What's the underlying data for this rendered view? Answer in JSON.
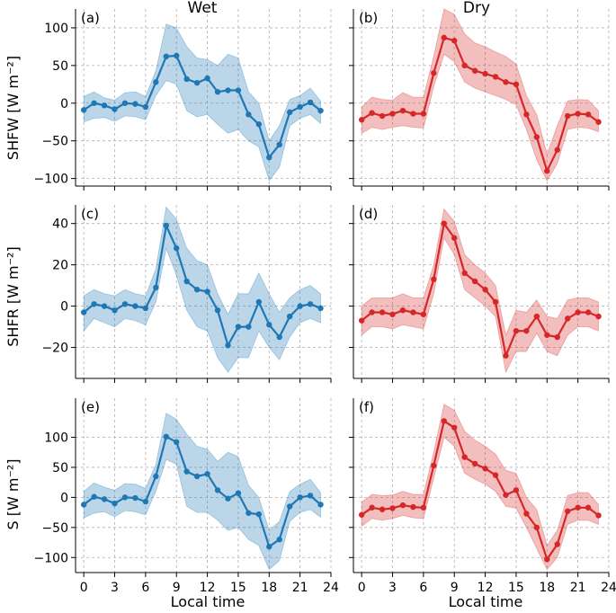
{
  "figure": {
    "col_titles": [
      "Wet",
      "Dry"
    ],
    "xlabel": "Local time",
    "ylabels": [
      "SHFW [W m⁻²]",
      "SHFR [W m⁻²]",
      "S [W m⁻²]"
    ]
  },
  "colors": {
    "wet": "#1f77b4",
    "dry": "#d62728",
    "grid": "#b0b0b0"
  },
  "chart_data": [
    {
      "type": "line",
      "panel": "(a)",
      "row": 0,
      "col": 0,
      "x": [
        0,
        1,
        2,
        3,
        4,
        5,
        6,
        7,
        8,
        9,
        10,
        11,
        12,
        13,
        14,
        15,
        16,
        17,
        18,
        19,
        20,
        21,
        22,
        23
      ],
      "y": [
        -9,
        0,
        -3,
        -8,
        0,
        -1,
        -5,
        28,
        62,
        63,
        32,
        27,
        33,
        15,
        17,
        17,
        -15,
        -28,
        -72,
        -55,
        -12,
        -5,
        1,
        -10
      ],
      "lower": [
        -25,
        -20,
        -19,
        -24,
        -17,
        -18,
        -22,
        10,
        30,
        25,
        -10,
        -18,
        -15,
        -28,
        -40,
        -35,
        -50,
        -58,
        -103,
        -85,
        -30,
        -20,
        -15,
        -27
      ],
      "upper": [
        9,
        15,
        7,
        4,
        14,
        15,
        9,
        43,
        105,
        100,
        75,
        60,
        58,
        50,
        65,
        60,
        15,
        0,
        -50,
        -30,
        5,
        10,
        20,
        3
      ],
      "xlim": [
        -0.8,
        24
      ],
      "ylim": [
        -110,
        125
      ],
      "xticks": [
        0,
        3,
        6,
        9,
        12,
        15,
        18,
        21,
        24
      ],
      "yticks": [
        -100,
        -50,
        0,
        50,
        100
      ]
    },
    {
      "type": "line",
      "panel": "(b)",
      "row": 0,
      "col": 1,
      "x": [
        0,
        1,
        2,
        3,
        4,
        5,
        6,
        7,
        8,
        9,
        10,
        11,
        12,
        13,
        14,
        15,
        16,
        17,
        18,
        19,
        20,
        21,
        22,
        23
      ],
      "y": [
        -22,
        -13,
        -17,
        -14,
        -10,
        -14,
        -14,
        40,
        87,
        83,
        50,
        43,
        39,
        35,
        28,
        25,
        -15,
        -45,
        -90,
        -62,
        -17,
        -14,
        -15,
        -25
      ],
      "lower": [
        -40,
        -32,
        -35,
        -32,
        -30,
        -32,
        -33,
        22,
        65,
        55,
        28,
        20,
        15,
        10,
        5,
        -2,
        -35,
        -75,
        -103,
        -80,
        -35,
        -32,
        -33,
        -38
      ],
      "upper": [
        -5,
        8,
        5,
        4,
        14,
        8,
        8,
        62,
        125,
        118,
        92,
        80,
        75,
        68,
        62,
        52,
        10,
        -15,
        -68,
        -30,
        3,
        5,
        4,
        -10
      ],
      "xlim": [
        -0.8,
        24
      ],
      "ylim": [
        -110,
        125
      ],
      "xticks": [
        0,
        3,
        6,
        9,
        12,
        15,
        18,
        21,
        24
      ],
      "yticks": [
        -100,
        -50,
        0,
        50,
        100
      ]
    },
    {
      "type": "line",
      "panel": "(c)",
      "row": 1,
      "col": 0,
      "x": [
        0,
        1,
        2,
        3,
        4,
        5,
        6,
        7,
        8,
        9,
        10,
        11,
        12,
        13,
        14,
        15,
        16,
        17,
        18,
        19,
        20,
        21,
        22,
        23
      ],
      "y": [
        -3,
        1,
        0,
        -2,
        1,
        0,
        -1,
        9,
        39,
        28,
        12,
        8,
        7,
        -2,
        -19,
        -10,
        -10,
        2,
        -9,
        -15,
        -5,
        0,
        1,
        -1
      ],
      "lower": [
        -12,
        -6,
        -8,
        -10,
        -6,
        -7,
        -9,
        2,
        28,
        15,
        -2,
        -10,
        -12,
        -25,
        -32,
        -25,
        -25,
        -12,
        -20,
        -26,
        -15,
        -8,
        -6,
        -8
      ],
      "upper": [
        5,
        8,
        6,
        5,
        8,
        6,
        5,
        18,
        48,
        42,
        28,
        22,
        20,
        6,
        -4,
        6,
        6,
        16,
        6,
        -3,
        4,
        8,
        10,
        6
      ],
      "xlim": [
        -0.8,
        24
      ],
      "ylim": [
        -35,
        49
      ],
      "xticks": [
        0,
        3,
        6,
        9,
        12,
        15,
        18,
        21,
        24
      ],
      "yticks": [
        -20,
        0,
        20,
        40
      ]
    },
    {
      "type": "line",
      "panel": "(d)",
      "row": 1,
      "col": 1,
      "x": [
        0,
        1,
        2,
        3,
        4,
        5,
        6,
        7,
        8,
        9,
        10,
        11,
        12,
        13,
        14,
        15,
        16,
        17,
        18,
        19,
        20,
        21,
        22,
        23
      ],
      "y": [
        -7,
        -3,
        -3,
        -4,
        -2,
        -3,
        -4,
        13,
        40,
        33,
        16,
        12,
        8,
        2,
        -24,
        -12,
        -12,
        -5,
        -14,
        -15,
        -6,
        -3,
        -3,
        -5
      ],
      "lower": [
        -14,
        -10,
        -10,
        -11,
        -9,
        -10,
        -11,
        6,
        33,
        25,
        8,
        4,
        0,
        -5,
        -32,
        -22,
        -22,
        -13,
        -22,
        -24,
        -14,
        -10,
        -10,
        -12
      ],
      "upper": [
        0,
        4,
        4,
        4,
        6,
        4,
        4,
        20,
        47,
        41,
        25,
        20,
        16,
        10,
        -14,
        -2,
        -3,
        3,
        -5,
        -6,
        3,
        4,
        4,
        2
      ],
      "xlim": [
        -0.8,
        24
      ],
      "ylim": [
        -35,
        49
      ],
      "xticks": [
        0,
        3,
        6,
        9,
        12,
        15,
        18,
        21,
        24
      ],
      "yticks": [
        -20,
        0,
        20,
        40
      ]
    },
    {
      "type": "line",
      "panel": "(e)",
      "row": 2,
      "col": 0,
      "x": [
        0,
        1,
        2,
        3,
        4,
        5,
        6,
        7,
        8,
        9,
        10,
        11,
        12,
        13,
        14,
        15,
        16,
        17,
        18,
        19,
        20,
        21,
        22,
        23
      ],
      "y": [
        -12,
        1,
        -3,
        -10,
        0,
        -1,
        -7,
        35,
        101,
        92,
        43,
        35,
        39,
        12,
        -2,
        7,
        -26,
        -28,
        -82,
        -70,
        -15,
        0,
        3,
        -12
      ],
      "lower": [
        -34,
        -26,
        -24,
        -32,
        -22,
        -24,
        -29,
        10,
        63,
        55,
        -15,
        -25,
        -25,
        -38,
        -55,
        -50,
        -70,
        -80,
        -120,
        -105,
        -40,
        -25,
        -20,
        -33
      ],
      "upper": [
        10,
        24,
        17,
        12,
        23,
        22,
        15,
        55,
        140,
        130,
        105,
        85,
        80,
        60,
        75,
        68,
        20,
        0,
        -55,
        -40,
        10,
        22,
        30,
        8
      ],
      "xlim": [
        -0.8,
        24
      ],
      "ylim": [
        -125,
        165
      ],
      "xticks": [
        0,
        3,
        6,
        9,
        12,
        15,
        18,
        21,
        24
      ],
      "yticks": [
        -100,
        -50,
        0,
        50,
        100
      ]
    },
    {
      "type": "line",
      "panel": "(f)",
      "row": 2,
      "col": 1,
      "x": [
        0,
        1,
        2,
        3,
        4,
        5,
        6,
        7,
        8,
        9,
        10,
        11,
        12,
        13,
        14,
        15,
        16,
        17,
        18,
        19,
        20,
        21,
        22,
        23
      ],
      "y": [
        -29,
        -17,
        -20,
        -18,
        -13,
        -16,
        -17,
        53,
        127,
        116,
        67,
        56,
        48,
        37,
        4,
        12,
        -27,
        -50,
        -103,
        -78,
        -23,
        -17,
        -17,
        -30
      ],
      "lower": [
        -48,
        -35,
        -38,
        -35,
        -30,
        -34,
        -35,
        32,
        100,
        85,
        40,
        30,
        22,
        10,
        -15,
        -18,
        -50,
        -85,
        -120,
        -100,
        -45,
        -38,
        -38,
        -45
      ],
      "upper": [
        -8,
        5,
        3,
        4,
        10,
        5,
        5,
        75,
        155,
        145,
        110,
        95,
        85,
        72,
        45,
        40,
        0,
        -20,
        -80,
        -55,
        3,
        8,
        8,
        -12
      ],
      "xlim": [
        -0.8,
        24
      ],
      "ylim": [
        -125,
        165
      ],
      "xticks": [
        0,
        3,
        6,
        9,
        12,
        15,
        18,
        21,
        24
      ],
      "yticks": [
        -100,
        -50,
        0,
        50,
        100
      ]
    }
  ]
}
